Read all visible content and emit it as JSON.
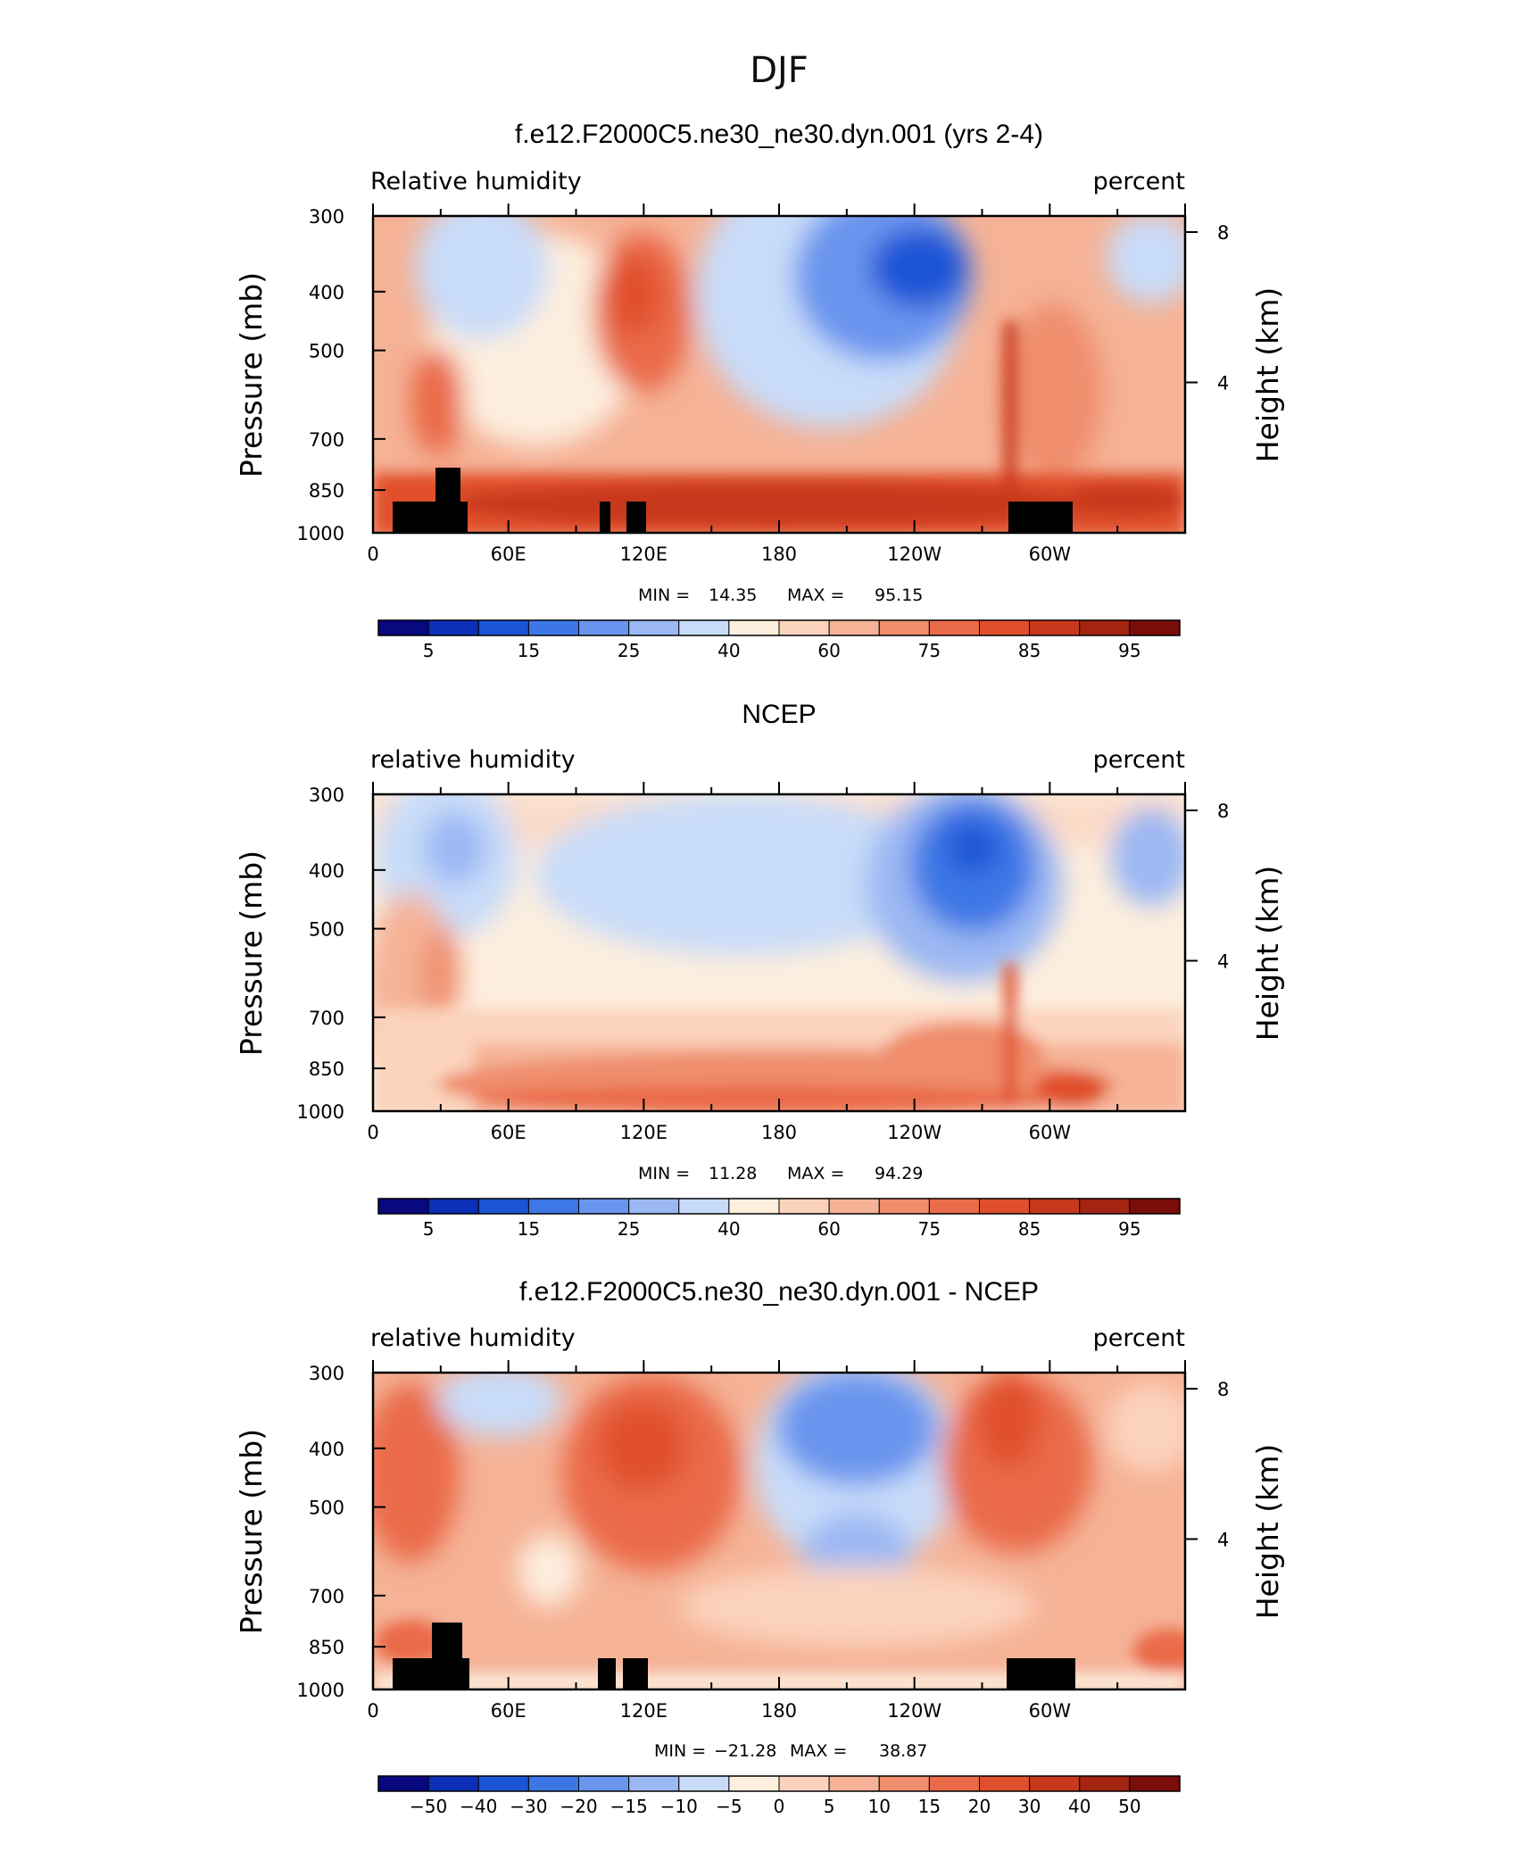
{
  "figure_title": "DJF",
  "colors": {
    "full_field_levels": [
      "#08087f",
      "#0b2fb7",
      "#1b55d6",
      "#3d77e6",
      "#6a95ee",
      "#9bb8f3",
      "#c8dcf9",
      "#fdeede",
      "#fbd3bd",
      "#f5b296",
      "#ef8d6c",
      "#ea6b49",
      "#e04f2b",
      "#c8381d",
      "#a42412",
      "#7b0e0a"
    ],
    "diff_levels": [
      "#08087f",
      "#0b2fb7",
      "#1b55d6",
      "#3d77e6",
      "#6a95ee",
      "#9bb8f3",
      "#c8dcf9",
      "#fdeede",
      "#fbd3bd",
      "#f5b296",
      "#ef8d6c",
      "#ea6b49",
      "#e04f2b",
      "#c8381d",
      "#a42412",
      "#7b0e0a"
    ],
    "topography": "#000000"
  },
  "chart_data": [
    {
      "type": "heatmap",
      "title": "f.e12.F2000C5.ne30_ne30.dyn.001 (yrs 2-4)",
      "left_label": "Relative  humidity",
      "right_label": "percent",
      "ylabel": "Pressure  (mb)",
      "ylabel_right": "Height  (km)",
      "x_ticks": [
        "0",
        "60E",
        "120E",
        "180",
        "120W",
        "60W"
      ],
      "y_ticks": [
        "300",
        "400",
        "500",
        "700",
        "850",
        "1000"
      ],
      "y_ticks_right": [
        "8",
        "4"
      ],
      "min_label": "MIN =",
      "min": "14.35",
      "max_label": "MAX =",
      "max": "95.15",
      "colorbar_labels": [
        "5",
        "15",
        "25",
        "40",
        "60",
        "75",
        "85",
        "95"
      ],
      "x_range": [
        0,
        360
      ],
      "y_range": [
        1000,
        300
      ],
      "grid": false
    },
    {
      "type": "heatmap",
      "title": "NCEP",
      "left_label": "relative  humidity",
      "right_label": "percent",
      "ylabel": "Pressure  (mb)",
      "ylabel_right": "Height  (km)",
      "x_ticks": [
        "0",
        "60E",
        "120E",
        "180",
        "120W",
        "60W"
      ],
      "y_ticks": [
        "300",
        "400",
        "500",
        "700",
        "850",
        "1000"
      ],
      "y_ticks_right": [
        "8",
        "4"
      ],
      "min_label": "MIN =",
      "min": "11.28",
      "max_label": "MAX =",
      "max": "94.29",
      "colorbar_labels": [
        "5",
        "15",
        "25",
        "40",
        "60",
        "75",
        "85",
        "95"
      ],
      "x_range": [
        0,
        360
      ],
      "y_range": [
        1000,
        300
      ],
      "grid": false
    },
    {
      "type": "heatmap",
      "title": "f.e12.F2000C5.ne30_ne30.dyn.001 - NCEP",
      "left_label": "relative  humidity",
      "right_label": "percent",
      "ylabel": "Pressure  (mb)",
      "ylabel_right": "Height  (km)",
      "x_ticks": [
        "0",
        "60E",
        "120E",
        "180",
        "120W",
        "60W"
      ],
      "y_ticks": [
        "300",
        "400",
        "500",
        "700",
        "850",
        "1000"
      ],
      "y_ticks_right": [
        "8",
        "4"
      ],
      "min_label": "MIN =",
      "min": "−21.28",
      "max_label": "MAX =",
      "max": "38.87",
      "colorbar_labels": [
        "−50",
        "−40",
        "−30",
        "−20",
        "−15",
        "−10",
        "−5",
        "0",
        "5",
        "10",
        "15",
        "20",
        "30",
        "40",
        "50"
      ],
      "x_range": [
        0,
        360
      ],
      "y_range": [
        1000,
        300
      ],
      "grid": false
    }
  ]
}
